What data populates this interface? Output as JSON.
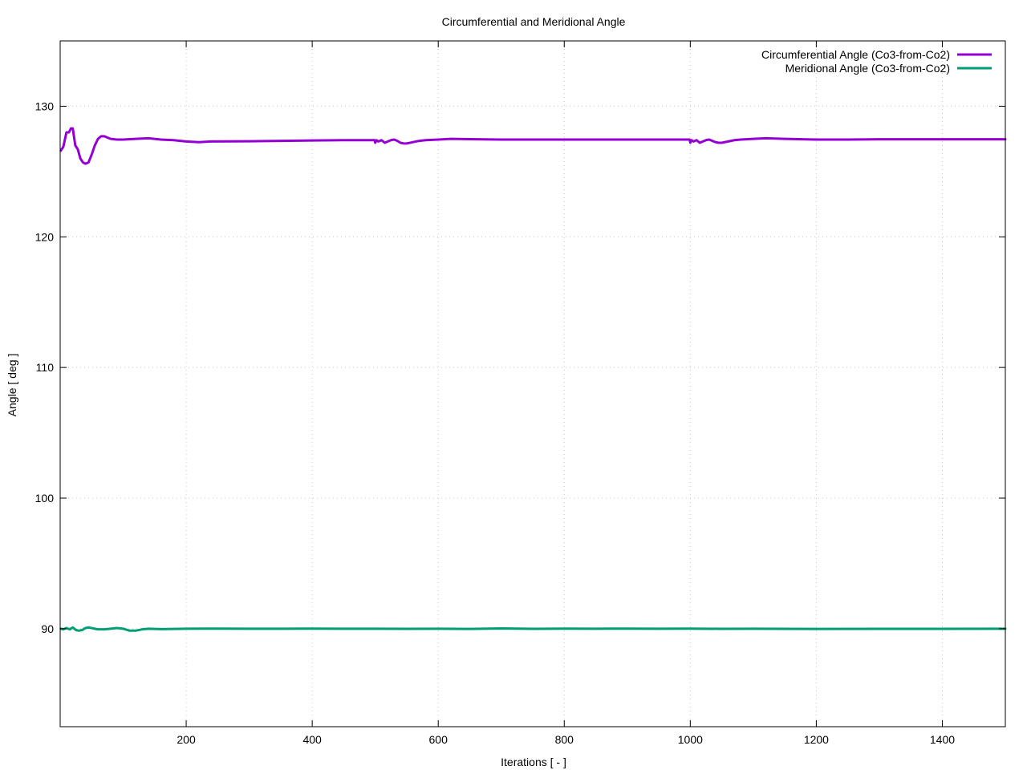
{
  "chart_data": {
    "type": "line",
    "title": "Circumferential and Meridional Angle",
    "xlabel": "Iterations [ - ]",
    "ylabel": "Angle [ deg ]",
    "xlim": [
      0,
      1500
    ],
    "ylim": [
      82.5,
      135
    ],
    "xticks": [
      200,
      400,
      600,
      800,
      1000,
      1200,
      1400
    ],
    "yticks": [
      90,
      100,
      110,
      120,
      130
    ],
    "grid": true,
    "legend_position": "top-right",
    "series": [
      {
        "name": "Circumferential Angle (Co3-from-Co2)",
        "color": "#9400d3",
        "x": [
          1,
          5,
          10,
          14,
          17,
          20,
          24,
          28,
          32,
          36,
          40,
          45,
          50,
          55,
          60,
          65,
          70,
          75,
          80,
          90,
          100,
          120,
          140,
          160,
          180,
          200,
          220,
          240,
          300,
          350,
          400,
          450,
          480,
          499,
          500,
          502,
          505,
          510,
          515,
          520,
          525,
          530,
          535,
          540,
          545,
          550,
          560,
          570,
          580,
          600,
          620,
          650,
          700,
          750,
          800,
          850,
          900,
          950,
          990,
          999,
          1000,
          1002,
          1005,
          1010,
          1015,
          1020,
          1025,
          1030,
          1035,
          1040,
          1045,
          1050,
          1060,
          1070,
          1080,
          1100,
          1120,
          1150,
          1200,
          1250,
          1300,
          1350,
          1400,
          1450,
          1500
        ],
        "y": [
          126.6,
          126.9,
          128.0,
          128.0,
          128.3,
          128.3,
          127.0,
          126.7,
          126.0,
          125.7,
          125.6,
          125.7,
          126.3,
          127.0,
          127.5,
          127.7,
          127.7,
          127.6,
          127.5,
          127.45,
          127.45,
          127.5,
          127.55,
          127.45,
          127.4,
          127.3,
          127.25,
          127.3,
          127.32,
          127.35,
          127.38,
          127.4,
          127.4,
          127.4,
          127.2,
          127.4,
          127.3,
          127.4,
          127.2,
          127.3,
          127.4,
          127.45,
          127.35,
          127.2,
          127.15,
          127.15,
          127.25,
          127.35,
          127.4,
          127.45,
          127.5,
          127.48,
          127.45,
          127.45,
          127.45,
          127.45,
          127.45,
          127.45,
          127.45,
          127.45,
          127.2,
          127.4,
          127.3,
          127.4,
          127.2,
          127.3,
          127.4,
          127.45,
          127.35,
          127.25,
          127.2,
          127.2,
          127.3,
          127.4,
          127.45,
          127.5,
          127.55,
          127.5,
          127.45,
          127.45,
          127.47,
          127.47,
          127.47,
          127.47,
          127.47
        ]
      },
      {
        "name": "Meridional Angle (Co3-from-Co2)",
        "color": "#009e73",
        "x": [
          1,
          5,
          10,
          15,
          20,
          25,
          30,
          35,
          40,
          45,
          50,
          55,
          60,
          70,
          80,
          90,
          100,
          110,
          120,
          130,
          140,
          160,
          180,
          200,
          250,
          300,
          350,
          400,
          450,
          500,
          550,
          600,
          650,
          700,
          750,
          800,
          850,
          900,
          950,
          1000,
          1050,
          1100,
          1150,
          1200,
          1300,
          1400,
          1500
        ],
        "y": [
          90.0,
          89.95,
          90.05,
          89.95,
          90.1,
          89.9,
          89.85,
          89.9,
          90.05,
          90.1,
          90.05,
          90.0,
          89.95,
          89.95,
          90.0,
          90.05,
          90.0,
          89.85,
          89.85,
          89.95,
          90.0,
          89.97,
          89.98,
          90.0,
          90.01,
          90.0,
          90.0,
          90.01,
          90.0,
          90.0,
          89.99,
          90.0,
          89.98,
          90.02,
          89.99,
          90.01,
          90.0,
          90.01,
          90.0,
          90.01,
          89.99,
          90.0,
          89.99,
          89.98,
          89.99,
          89.99,
          90.0
        ]
      }
    ]
  }
}
